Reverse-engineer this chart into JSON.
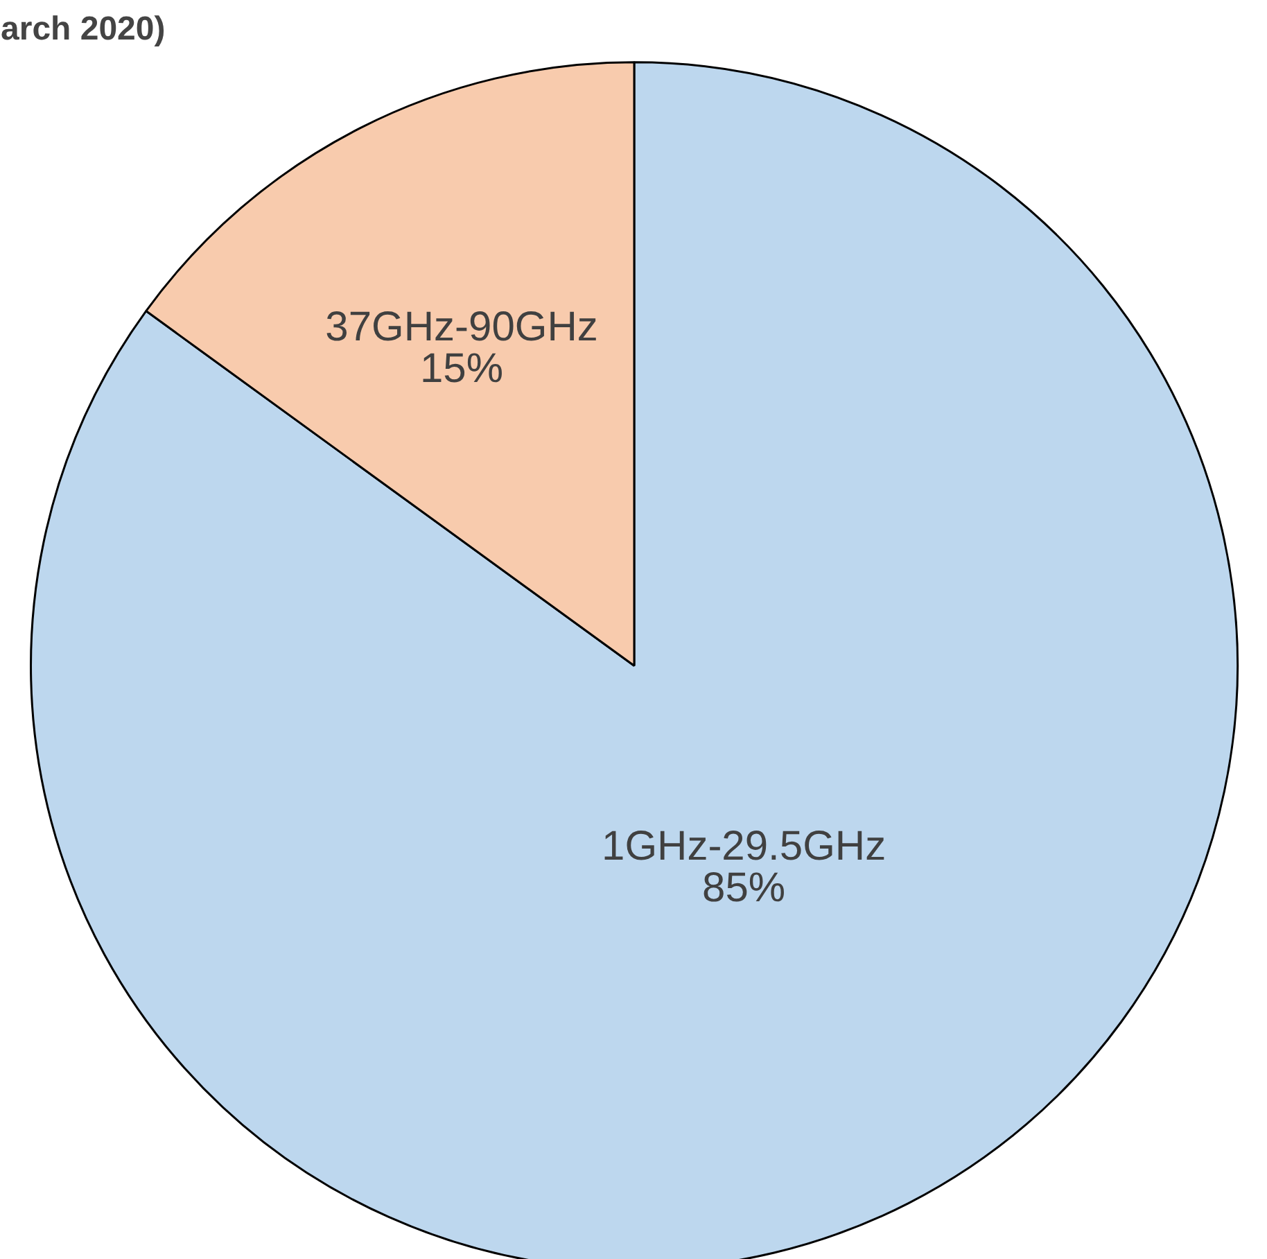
{
  "chart_data": {
    "type": "pie",
    "title": "arch 2020)",
    "categories": [
      "1GHz-29.5GHz",
      "37GHz-90GHz"
    ],
    "values": [
      85,
      15
    ],
    "colors": [
      "#bdd7ee",
      "#f8cbad"
    ],
    "value_labels": [
      "85%",
      "15%"
    ]
  }
}
